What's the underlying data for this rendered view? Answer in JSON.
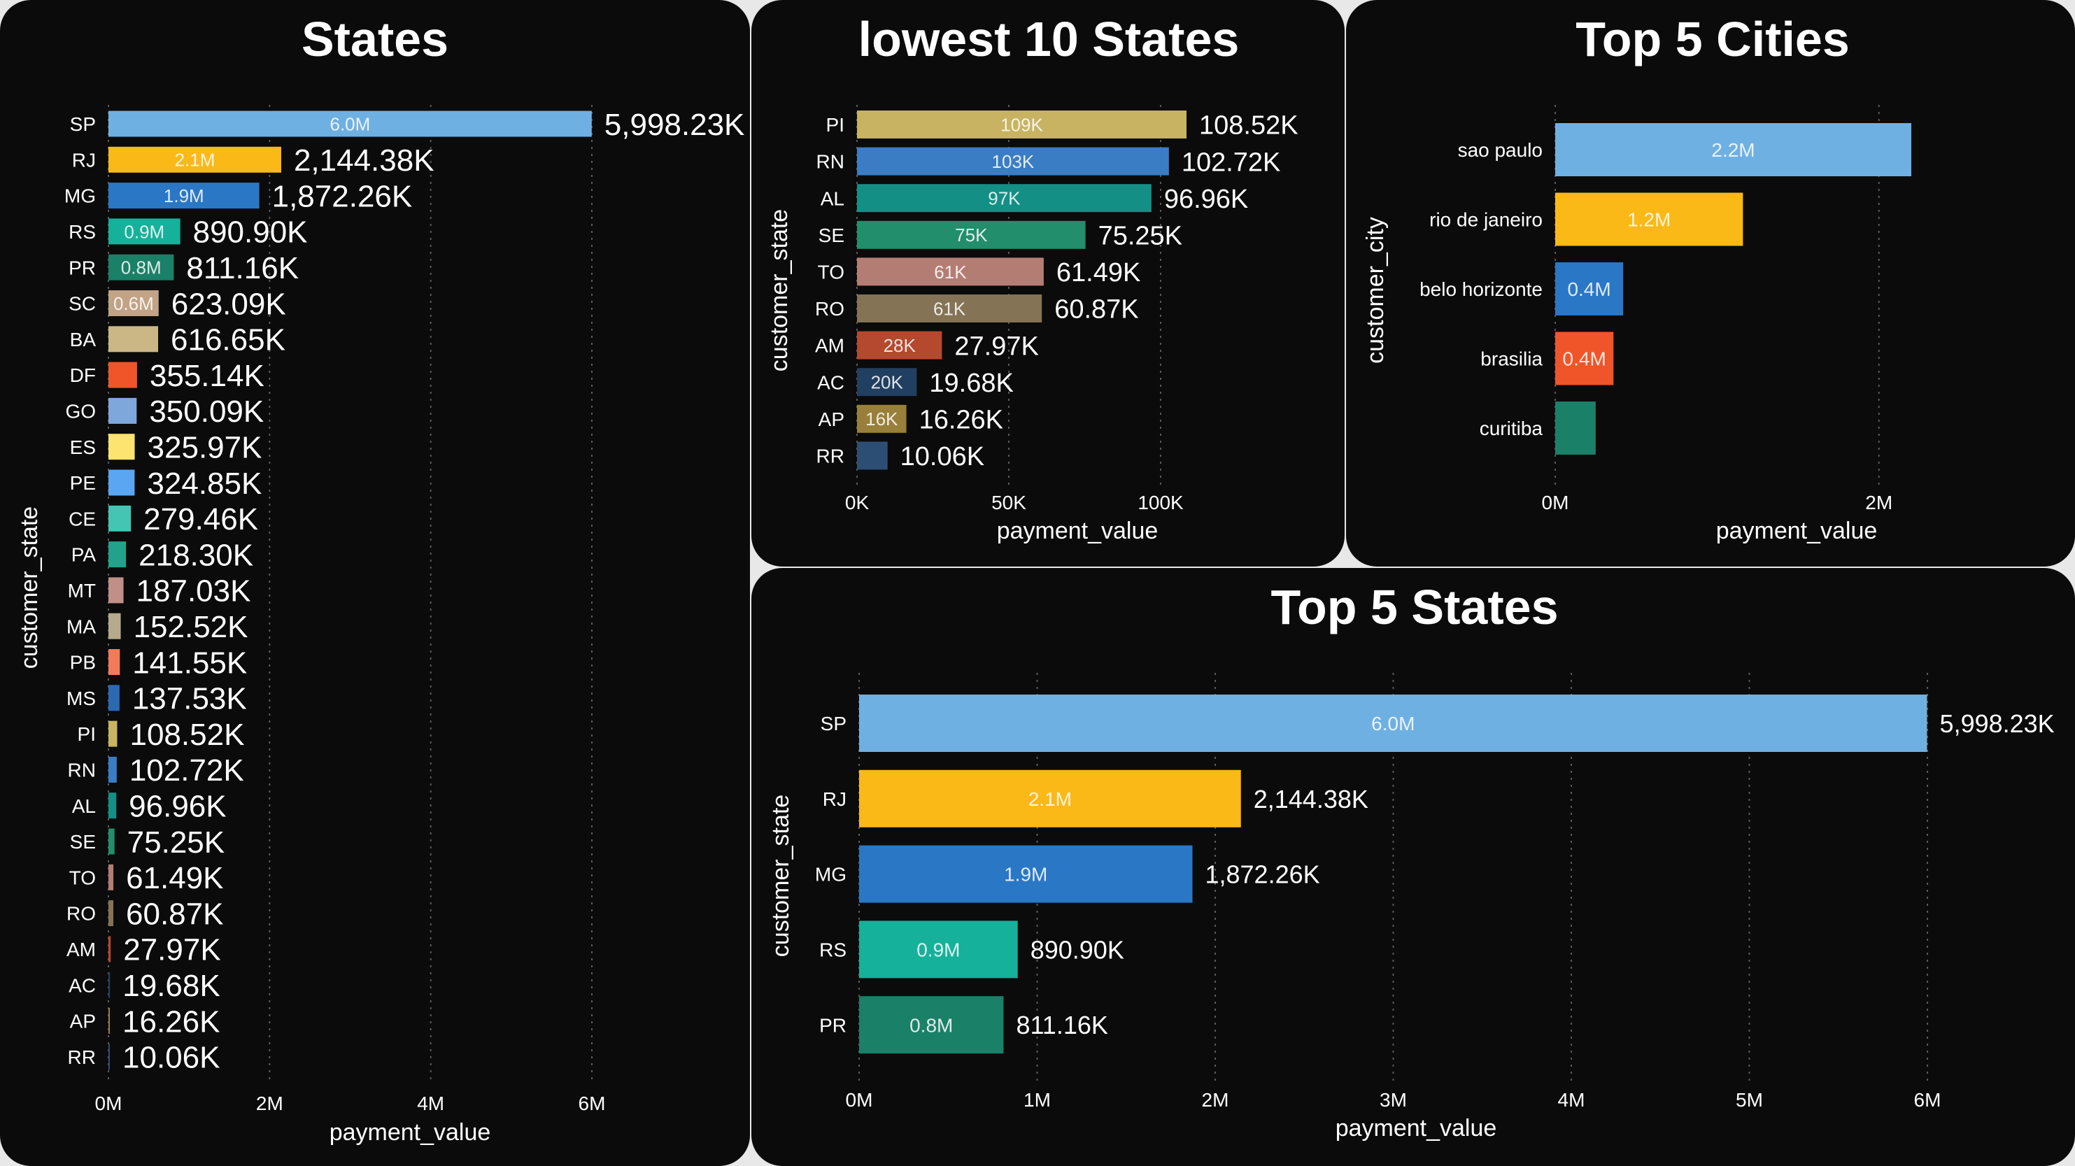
{
  "chart_data": [
    {
      "id": "states",
      "type": "bar",
      "orientation": "horizontal",
      "title": "States",
      "xlabel": "payment_value",
      "ylabel": "customer_state",
      "xlim": [
        0,
        6000000
      ],
      "xticks": [
        0,
        2000000,
        4000000,
        6000000
      ],
      "xtick_labels": [
        "0M",
        "2M",
        "4M",
        "6M"
      ],
      "grid": true,
      "categories": [
        "SP",
        "RJ",
        "MG",
        "RS",
        "PR",
        "SC",
        "BA",
        "DF",
        "GO",
        "ES",
        "PE",
        "CE",
        "PA",
        "MT",
        "MA",
        "PB",
        "MS",
        "PI",
        "RN",
        "AL",
        "SE",
        "TO",
        "RO",
        "AM",
        "AC",
        "AP",
        "RR"
      ],
      "values": [
        5998230,
        2144380,
        1872260,
        890900,
        811160,
        623090,
        616650,
        355140,
        350090,
        325970,
        324850,
        279460,
        218300,
        187030,
        152520,
        141550,
        137530,
        108520,
        102720,
        96960,
        75250,
        61490,
        60870,
        27970,
        19680,
        16260,
        10060
      ],
      "value_labels": [
        "5,998.23K",
        "2,144.38K",
        "1,872.26K",
        "890.90K",
        "811.16K",
        "623.09K",
        "616.65K",
        "355.14K",
        "350.09K",
        "325.97K",
        "324.85K",
        "279.46K",
        "218.30K",
        "187.03K",
        "152.52K",
        "141.55K",
        "137.53K",
        "108.52K",
        "102.72K",
        "96.96K",
        "75.25K",
        "61.49K",
        "60.87K",
        "27.97K",
        "19.68K",
        "16.26K",
        "10.06K"
      ],
      "inside_labels": [
        "6.0M",
        "2.1M",
        "1.9M",
        "0.9M",
        "0.8M",
        "0.6M",
        "",
        "",
        "",
        "",
        "",
        "",
        "",
        "",
        "",
        "",
        "",
        "",
        "",
        "",
        "",
        "",
        "",
        "",
        "",
        "",
        ""
      ],
      "colors": [
        "#6fb0e3",
        "#fbb918",
        "#2a77c5",
        "#15b19a",
        "#1a8068",
        "#c2a386",
        "#cbb786",
        "#f0552a",
        "#7ea7dc",
        "#fde36f",
        "#5ba6f3",
        "#44c5b3",
        "#21a28a",
        "#c08f88",
        "#b5aa8c",
        "#f17b58",
        "#2b6ab3",
        "#c7b362",
        "#3b7dc4",
        "#148f86",
        "#228e6c",
        "#b47d74",
        "#857356",
        "#b4492d",
        "#213f60",
        "#98803a",
        "#2d4e74"
      ]
    },
    {
      "id": "lowest10",
      "type": "bar",
      "orientation": "horizontal",
      "title": "lowest 10 States",
      "xlabel": "payment_value",
      "ylabel": "customer_state",
      "xlim": [
        0,
        108520
      ],
      "xticks": [
        0,
        50000,
        100000
      ],
      "xtick_labels": [
        "0K",
        "50K",
        "100K"
      ],
      "grid": true,
      "categories": [
        "PI",
        "RN",
        "AL",
        "SE",
        "TO",
        "RO",
        "AM",
        "AC",
        "AP",
        "RR"
      ],
      "values": [
        108520,
        102720,
        96960,
        75250,
        61490,
        60870,
        27970,
        19680,
        16260,
        10060
      ],
      "value_labels": [
        "108.52K",
        "102.72K",
        "96.96K",
        "75.25K",
        "61.49K",
        "60.87K",
        "27.97K",
        "19.68K",
        "16.26K",
        "10.06K"
      ],
      "inside_labels": [
        "109K",
        "103K",
        "97K",
        "75K",
        "61K",
        "61K",
        "28K",
        "20K",
        "16K",
        ""
      ],
      "colors": [
        "#c7b362",
        "#3b7dc4",
        "#148f86",
        "#228e6c",
        "#b47d74",
        "#857356",
        "#b4492d",
        "#213f60",
        "#98803a",
        "#2d4e74"
      ]
    },
    {
      "id": "top5cities",
      "type": "bar",
      "orientation": "horizontal",
      "title": "Top 5 Cities",
      "xlabel": "payment_value",
      "ylabel": "customer_city",
      "xlim": [
        0,
        2200000
      ],
      "xticks": [
        0,
        2000000
      ],
      "xtick_labels": [
        "0M",
        "2M"
      ],
      "grid": true,
      "categories": [
        "sao paulo",
        "rio de janeiro",
        "belo horizonte",
        "brasilia",
        "curitiba"
      ],
      "values": [
        2200000,
        1160000,
        420000,
        360000,
        250000
      ],
      "value_labels": [
        "",
        "",
        "",
        "",
        ""
      ],
      "inside_labels": [
        "2.2M",
        "1.2M",
        "0.4M",
        "0.4M",
        ""
      ],
      "colors": [
        "#6fb0e3",
        "#fbb918",
        "#2a77c5",
        "#f0552a",
        "#1a8068"
      ]
    },
    {
      "id": "top5states",
      "type": "bar",
      "orientation": "horizontal",
      "title": "Top 5 States",
      "xlabel": "payment_value",
      "ylabel": "customer_state",
      "xlim": [
        0,
        6000000
      ],
      "xticks": [
        0,
        1000000,
        2000000,
        3000000,
        4000000,
        5000000,
        6000000
      ],
      "xtick_labels": [
        "0M",
        "1M",
        "2M",
        "3M",
        "4M",
        "5M",
        "6M"
      ],
      "grid": true,
      "categories": [
        "SP",
        "RJ",
        "MG",
        "RS",
        "PR"
      ],
      "values": [
        5998230,
        2144380,
        1872260,
        890900,
        811160
      ],
      "value_labels": [
        "5,998.23K",
        "2,144.38K",
        "1,872.26K",
        "890.90K",
        "811.16K"
      ],
      "inside_labels": [
        "6.0M",
        "2.1M",
        "1.9M",
        "0.9M",
        "0.8M"
      ],
      "colors": [
        "#6fb0e3",
        "#fbb918",
        "#2a77c5",
        "#15b19a",
        "#1a8068"
      ]
    }
  ]
}
